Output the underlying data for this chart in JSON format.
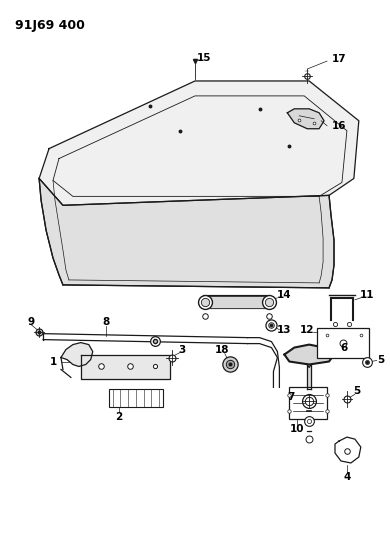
{
  "title": "91J69 400",
  "bg": "#ffffff",
  "lc": "#1a1a1a",
  "fig_w": 3.9,
  "fig_h": 5.33,
  "dpi": 100,
  "title_fs": 9,
  "label_fs": 7.5
}
